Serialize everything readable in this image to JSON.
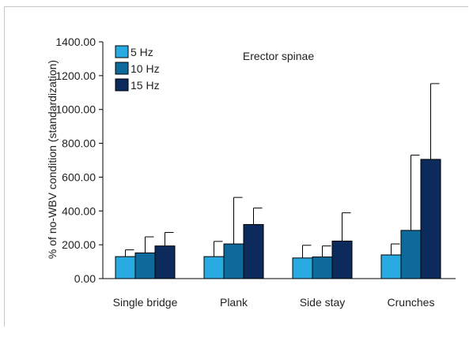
{
  "chart_data": {
    "type": "bar",
    "title": "Erector spinae",
    "ylabel": "% of no-WBV condition (standardization)",
    "xlabel": "",
    "ylim": [
      0,
      1400
    ],
    "yticks": [
      "0.00",
      "200.00",
      "400.00",
      "600.00",
      "800.00",
      "1000.00",
      "1200.00",
      "1400.00"
    ],
    "grid": false,
    "legend_position": "top-left",
    "categories": [
      "Single bridge",
      "Plank",
      "Side stay",
      "Crunches"
    ],
    "series": [
      {
        "name": "5 Hz",
        "color": "#29abe2",
        "values": [
          130,
          130,
          122,
          140
        ],
        "errors": [
          40,
          90,
          75,
          65
        ]
      },
      {
        "name": "10 Hz",
        "color": "#0f6a9c",
        "values": [
          152,
          205,
          128,
          285
        ],
        "errors": [
          95,
          275,
          65,
          445
        ]
      },
      {
        "name": "15 Hz",
        "color": "#0d2a5c",
        "values": [
          193,
          320,
          222,
          705
        ],
        "errors": [
          80,
          97,
          167,
          448
        ]
      }
    ]
  }
}
